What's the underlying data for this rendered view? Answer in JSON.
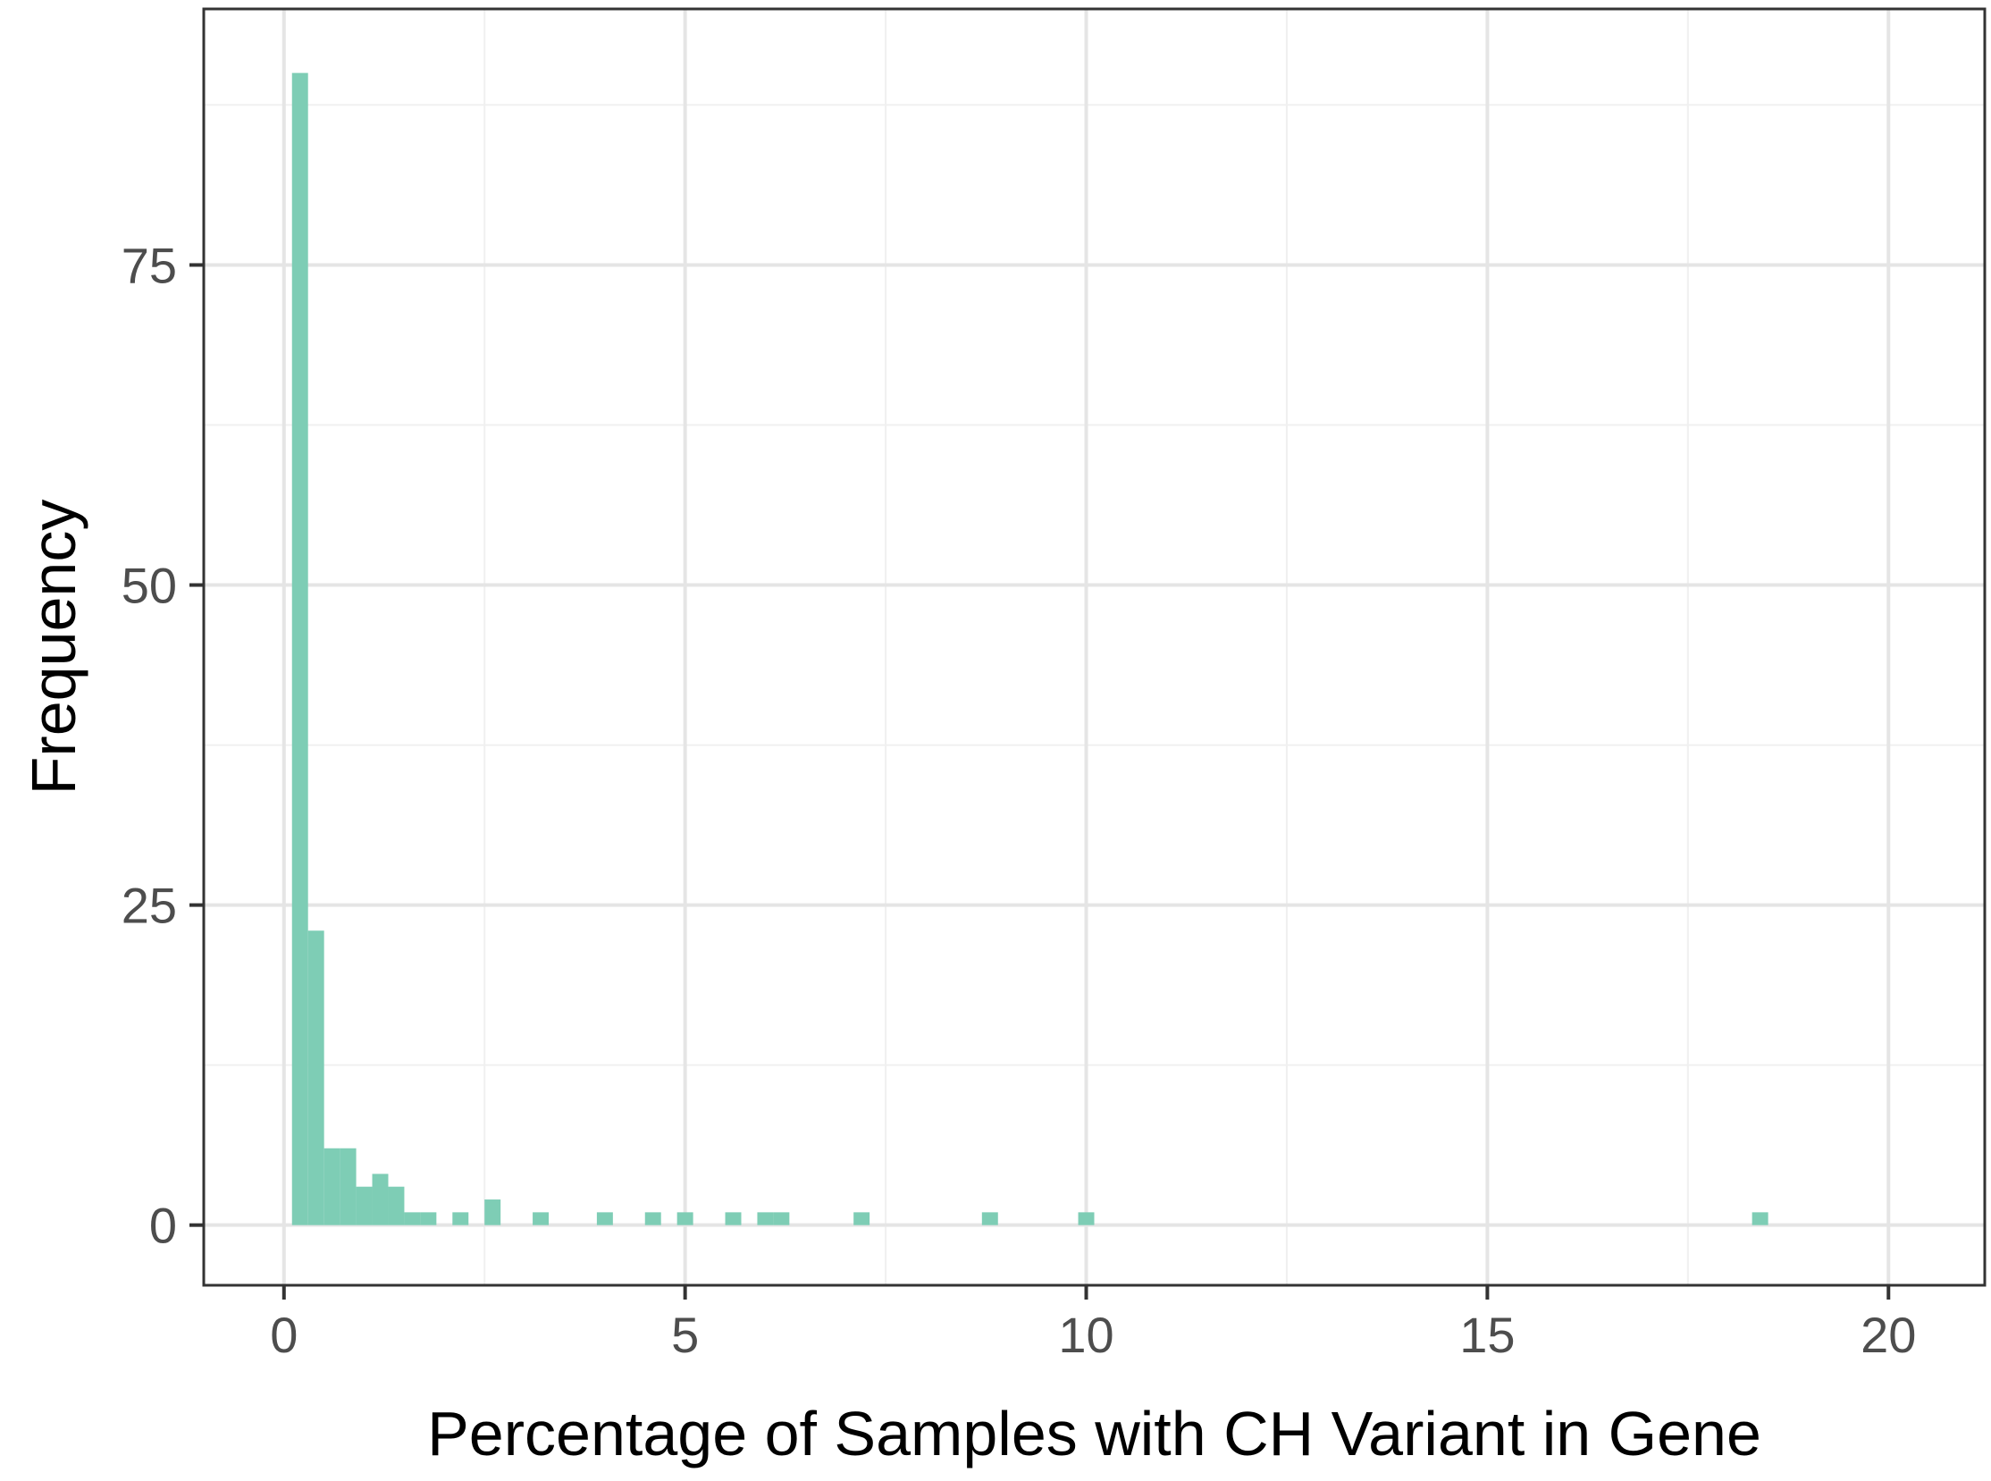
{
  "chart_data": {
    "type": "bar",
    "title": "",
    "xlabel": "Percentage of Samples with CH Variant in Gene",
    "ylabel": "Frequency",
    "xlim": [
      -1,
      21.2
    ],
    "ylim": [
      -4.7,
      95
    ],
    "x_ticks": [
      0,
      5,
      10,
      15,
      20
    ],
    "y_ticks": [
      0,
      25,
      50,
      75
    ],
    "x_tick_labels": [
      "0",
      "5",
      "10",
      "15",
      "20"
    ],
    "y_tick_labels": [
      "0",
      "25",
      "50",
      "75"
    ],
    "x_minor_gridlines": [
      2.5,
      7.5,
      12.5,
      17.5
    ],
    "y_minor_gridlines": [
      12.5,
      37.5,
      62.5,
      87.5
    ],
    "grid": true,
    "bin_width": 0.2,
    "bins": [
      {
        "x": 0.2,
        "count": 90
      },
      {
        "x": 0.4,
        "count": 23
      },
      {
        "x": 0.6,
        "count": 6
      },
      {
        "x": 0.8,
        "count": 6
      },
      {
        "x": 1.0,
        "count": 3
      },
      {
        "x": 1.2,
        "count": 4
      },
      {
        "x": 1.4,
        "count": 3
      },
      {
        "x": 1.6,
        "count": 1
      },
      {
        "x": 1.8,
        "count": 1
      },
      {
        "x": 2.2,
        "count": 1
      },
      {
        "x": 2.6,
        "count": 2
      },
      {
        "x": 3.2,
        "count": 1
      },
      {
        "x": 4.0,
        "count": 1
      },
      {
        "x": 4.6,
        "count": 1
      },
      {
        "x": 5.0,
        "count": 1
      },
      {
        "x": 5.6,
        "count": 1
      },
      {
        "x": 6.0,
        "count": 1
      },
      {
        "x": 6.2,
        "count": 1
      },
      {
        "x": 7.2,
        "count": 1
      },
      {
        "x": 8.8,
        "count": 1
      },
      {
        "x": 10.0,
        "count": 1
      },
      {
        "x": 18.4,
        "count": 1
      }
    ],
    "colors": {
      "bar_fill": "#7ecdb5",
      "grid_major": "#e5e5e5",
      "grid_minor": "#f0f0f0",
      "panel_border": "#333333",
      "tick_mark": "#333333",
      "tick_label": "#4d4d4d",
      "axis_title": "#000000"
    }
  }
}
